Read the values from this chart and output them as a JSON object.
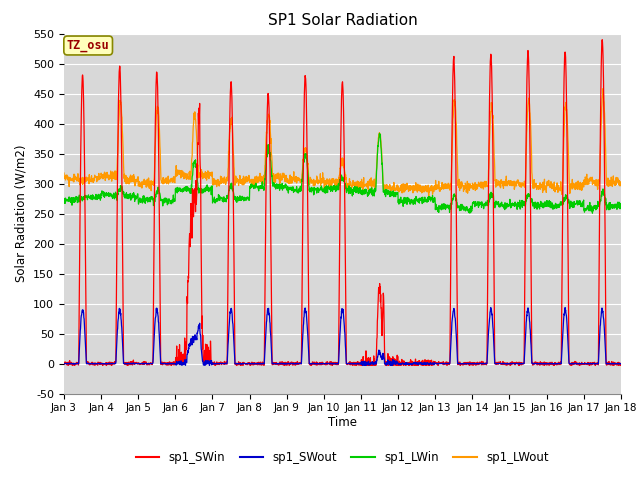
{
  "title": "SP1 Solar Radiation",
  "ylabel": "Solar Radiation (W/m2)",
  "xlabel": "Time",
  "ylim": [
    -50,
    550
  ],
  "yticks": [
    -50,
    0,
    50,
    100,
    150,
    200,
    250,
    300,
    350,
    400,
    450,
    500,
    550
  ],
  "xtick_labels": [
    "Jan 3",
    "Jan 4",
    "Jan 5",
    "Jan 6",
    "Jan 7",
    "Jan 8",
    "Jan 9",
    "Jan 10",
    "Jan 11",
    "Jan 12",
    "Jan 13",
    "Jan 14",
    "Jan 15",
    "Jan 16",
    "Jan 17",
    "Jan 18"
  ],
  "colors": {
    "SWin": "#ff0000",
    "SWout": "#0000cc",
    "LWin": "#00cc00",
    "LWout": "#ff9900"
  },
  "legend_labels": [
    "sp1_SWin",
    "sp1_SWout",
    "sp1_LWin",
    "sp1_LWout"
  ],
  "annotation_text": "TZ_osu",
  "bg_color": "#d8d8d8",
  "title_fontsize": 11,
  "n_days": 15,
  "pts_per_day": 144
}
